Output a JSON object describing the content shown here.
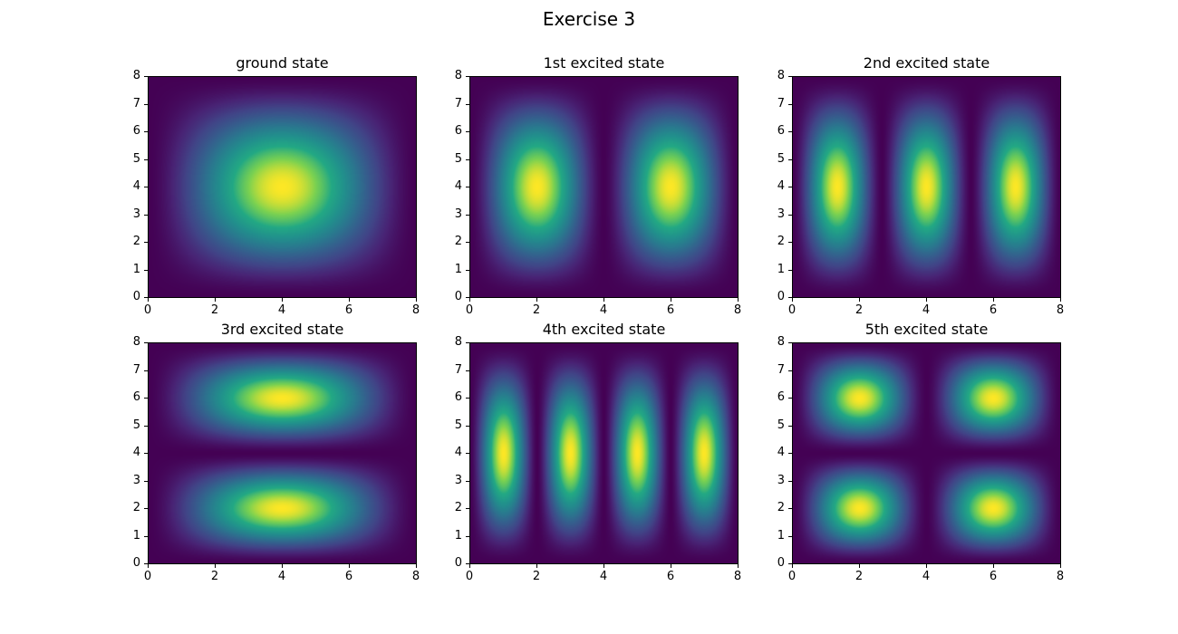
{
  "figure": {
    "title": "Exercise 3"
  },
  "chart_data": [
    {
      "type": "heatmap",
      "title": "ground state",
      "xlim": [
        0,
        8
      ],
      "ylim": [
        0,
        8
      ],
      "xticks": [
        "0",
        "2",
        "4",
        "6",
        "8"
      ],
      "yticks": [
        "0",
        "1",
        "2",
        "3",
        "4",
        "5",
        "6",
        "7",
        "8"
      ],
      "colormap": "viridis",
      "state": {
        "nx": 1,
        "ny": 1
      }
    },
    {
      "type": "heatmap",
      "title": "1st excited state",
      "xlim": [
        0,
        8
      ],
      "ylim": [
        0,
        8
      ],
      "xticks": [
        "0",
        "2",
        "4",
        "6",
        "8"
      ],
      "yticks": [
        "0",
        "1",
        "2",
        "3",
        "4",
        "5",
        "6",
        "7",
        "8"
      ],
      "colormap": "viridis",
      "state": {
        "nx": 2,
        "ny": 1
      }
    },
    {
      "type": "heatmap",
      "title": "2nd excited state",
      "xlim": [
        0,
        8
      ],
      "ylim": [
        0,
        8
      ],
      "xticks": [
        "0",
        "2",
        "4",
        "6",
        "8"
      ],
      "yticks": [
        "0",
        "1",
        "2",
        "3",
        "4",
        "5",
        "6",
        "7",
        "8"
      ],
      "colormap": "viridis",
      "state": {
        "nx": 3,
        "ny": 1
      }
    },
    {
      "type": "heatmap",
      "title": "3rd excited state",
      "xlim": [
        0,
        8
      ],
      "ylim": [
        0,
        8
      ],
      "xticks": [
        "0",
        "2",
        "4",
        "6",
        "8"
      ],
      "yticks": [
        "0",
        "1",
        "2",
        "3",
        "4",
        "5",
        "6",
        "7",
        "8"
      ],
      "colormap": "viridis",
      "state": {
        "nx": 1,
        "ny": 2
      }
    },
    {
      "type": "heatmap",
      "title": "4th excited state",
      "xlim": [
        0,
        8
      ],
      "ylim": [
        0,
        8
      ],
      "xticks": [
        "0",
        "2",
        "4",
        "6",
        "8"
      ],
      "yticks": [
        "0",
        "1",
        "2",
        "3",
        "4",
        "5",
        "6",
        "7",
        "8"
      ],
      "colormap": "viridis",
      "state": {
        "nx": 4,
        "ny": 1
      }
    },
    {
      "type": "heatmap",
      "title": "5th excited state",
      "xlim": [
        0,
        8
      ],
      "ylim": [
        0,
        8
      ],
      "xticks": [
        "0",
        "2",
        "4",
        "6",
        "8"
      ],
      "yticks": [
        "0",
        "1",
        "2",
        "3",
        "4",
        "5",
        "6",
        "7",
        "8"
      ],
      "colormap": "viridis",
      "state": {
        "nx": 2,
        "ny": 2
      }
    }
  ]
}
